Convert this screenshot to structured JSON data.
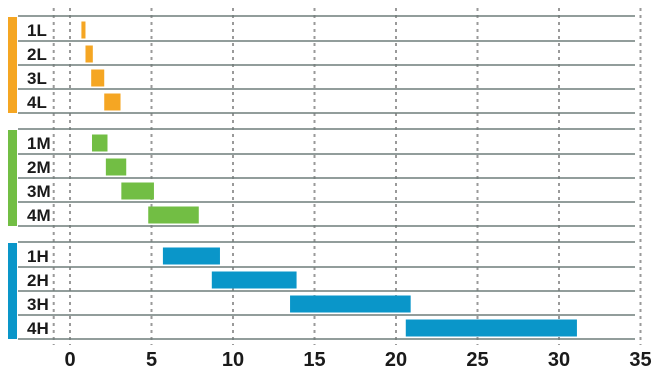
{
  "chart_data": {
    "type": "bar",
    "orientation": "horizontal",
    "floating_bars": true,
    "title": "",
    "xlabel": "",
    "ylabel": "",
    "xlim": [
      -1,
      35
    ],
    "x_ticks": [
      0,
      5,
      10,
      15,
      20,
      25,
      30,
      35
    ],
    "grid": true,
    "legend": "none",
    "groups": [
      {
        "id": "L",
        "color": "#f5a623",
        "rows": [
          {
            "label": "1L",
            "start": 0.7,
            "end": 0.95
          },
          {
            "label": "2L",
            "start": 0.95,
            "end": 1.4
          },
          {
            "label": "3L",
            "start": 1.3,
            "end": 2.1
          },
          {
            "label": "4L",
            "start": 2.1,
            "end": 3.1
          }
        ]
      },
      {
        "id": "M",
        "color": "#72be44",
        "rows": [
          {
            "label": "1M",
            "start": 1.35,
            "end": 2.3
          },
          {
            "label": "2M",
            "start": 2.2,
            "end": 3.45
          },
          {
            "label": "3M",
            "start": 3.15,
            "end": 5.15
          },
          {
            "label": "4M",
            "start": 4.8,
            "end": 7.9
          }
        ]
      },
      {
        "id": "H",
        "color": "#0a96c9",
        "rows": [
          {
            "label": "1H",
            "start": 5.7,
            "end": 9.2
          },
          {
            "label": "2H",
            "start": 8.7,
            "end": 13.9
          },
          {
            "label": "3H",
            "start": 13.5,
            "end": 20.9
          },
          {
            "label": "4H",
            "start": 20.6,
            "end": 31.1
          }
        ]
      }
    ]
  }
}
